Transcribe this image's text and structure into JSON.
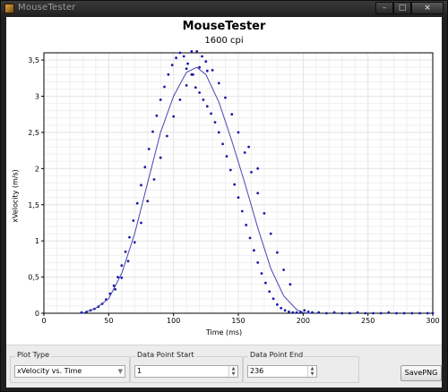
{
  "window": {
    "title": "MouseTester",
    "minimize_glyph": "–",
    "maximize_glyph": "□",
    "close_glyph": "×"
  },
  "plot": {
    "title": "MouseTester",
    "subtitle": "1600 cpi"
  },
  "chart_data": {
    "type": "scatter",
    "title": "MouseTester",
    "subtitle": "1600 cpi",
    "xlabel": "Time (ms)",
    "ylabel": "xVelocity (m/s)",
    "xlim": [
      0,
      300
    ],
    "ylim": [
      0,
      3.6
    ],
    "x_ticks": [
      0,
      50,
      100,
      150,
      200,
      250,
      300
    ],
    "x_tick_labels": [
      "0",
      "50",
      "100",
      "150",
      "200",
      "250",
      "300"
    ],
    "y_ticks": [
      0,
      0.5,
      1,
      1.5,
      2,
      2.5,
      3,
      3.5
    ],
    "y_tick_labels": [
      "0",
      "0,5",
      "1",
      "1,5",
      "2",
      "2,5",
      "3",
      "3,5"
    ],
    "grid": true,
    "colors": {
      "points": "#1a1aa8",
      "line": "#4646b4",
      "grid": "#e6e6e6"
    },
    "series": [
      {
        "kind": "points",
        "x": [
          29,
          33,
          36,
          39,
          42,
          45,
          48,
          51,
          54,
          57,
          60,
          63,
          66,
          69,
          72,
          75,
          78,
          81,
          84,
          87,
          90,
          93,
          96,
          99,
          102,
          105,
          108,
          111,
          114,
          117,
          120,
          123,
          126,
          129,
          132,
          135,
          138,
          141,
          144,
          147,
          150,
          153,
          156,
          159,
          162,
          165,
          168,
          171,
          174,
          177,
          180,
          183,
          186,
          189,
          192,
          195,
          198,
          201,
          204,
          207,
          212,
          218,
          224,
          230,
          236,
          242,
          248,
          254,
          260,
          266,
          272,
          278,
          284,
          290,
          296,
          300,
          55,
          60,
          65,
          70,
          75,
          80,
          85,
          90,
          95,
          100,
          105,
          110,
          115,
          120,
          125,
          130,
          135,
          140,
          145,
          150,
          155,
          160,
          165,
          170,
          175,
          180,
          185,
          190,
          110,
          118,
          122,
          114,
          126,
          158,
          165
        ],
        "y": [
          0.01,
          0.02,
          0.04,
          0.06,
          0.09,
          0.13,
          0.19,
          0.27,
          0.38,
          0.5,
          0.66,
          0.85,
          1.05,
          1.28,
          1.52,
          1.77,
          2.02,
          2.27,
          2.51,
          2.73,
          2.95,
          3.13,
          3.3,
          3.43,
          3.53,
          3.6,
          3.55,
          3.45,
          3.3,
          3.12,
          3.05,
          2.95,
          2.86,
          2.76,
          2.64,
          2.5,
          2.34,
          2.17,
          1.98,
          1.78,
          1.6,
          1.41,
          1.22,
          1.04,
          0.87,
          0.7,
          0.55,
          0.42,
          0.3,
          0.2,
          0.12,
          0.07,
          0.04,
          0.02,
          0.01,
          0.01,
          0.02,
          0.04,
          0.02,
          0.01,
          0.01,
          0.0,
          0.01,
          0.0,
          0.0,
          0.01,
          0.0,
          0.0,
          0.0,
          0.01,
          0.0,
          0.0,
          0.0,
          0.0,
          0.0,
          0.0,
          0.33,
          0.49,
          0.72,
          0.98,
          1.25,
          1.55,
          1.85,
          2.15,
          2.45,
          2.72,
          2.95,
          3.15,
          3.3,
          3.4,
          3.48,
          3.36,
          3.18,
          2.98,
          2.75,
          2.5,
          2.22,
          1.95,
          1.66,
          1.38,
          1.1,
          0.84,
          0.6,
          0.4,
          3.38,
          3.62,
          3.55,
          3.62,
          3.35,
          2.3,
          2.0
        ]
      },
      {
        "kind": "line",
        "x": [
          30,
          40,
          50,
          60,
          70,
          80,
          90,
          100,
          110,
          118,
          125,
          135,
          145,
          155,
          165,
          175,
          185,
          195,
          200,
          205
        ],
        "y": [
          0.0,
          0.07,
          0.2,
          0.55,
          1.1,
          1.8,
          2.5,
          3.0,
          3.33,
          3.4,
          3.3,
          2.92,
          2.38,
          1.8,
          1.18,
          0.62,
          0.24,
          0.05,
          0.01,
          0.0
        ]
      }
    ]
  },
  "controls": {
    "plot_type": {
      "label": "Plot Type",
      "value": "xVelocity vs. Time"
    },
    "data_point_start": {
      "label": "Data Point Start",
      "value": "1"
    },
    "data_point_end": {
      "label": "Data Point End",
      "value": "236"
    },
    "save_button": "SavePNG"
  }
}
